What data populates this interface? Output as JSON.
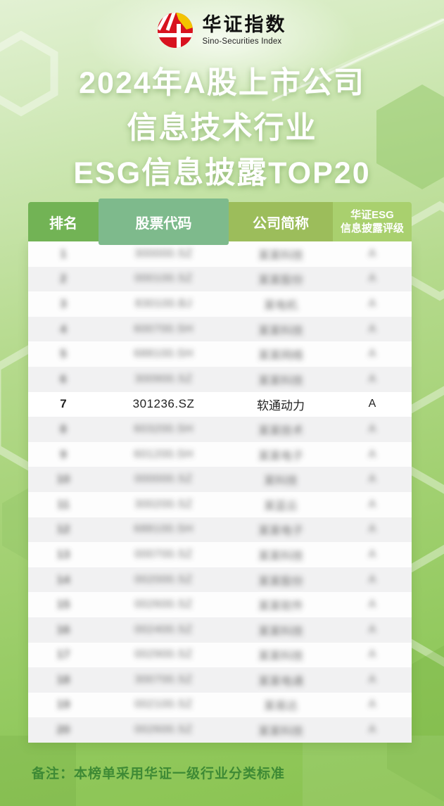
{
  "brand": {
    "name_cn": "华证指数",
    "name_en": "Sino-Securities Index"
  },
  "title": {
    "line1": "2024年A股上市公司",
    "line2": "信息技术行业",
    "line3": "ESG信息披露TOP20"
  },
  "table": {
    "col_rank": "排名",
    "col_code": "股票代码",
    "col_name": "公司简称",
    "col_rating_line1": "华证ESG",
    "col_rating_line2": "信息披露评级",
    "rows": [
      {
        "rank": "1",
        "code": "300000.SZ",
        "name": "某某科技",
        "rating": "A",
        "blurred": true
      },
      {
        "rank": "2",
        "code": "000100.SZ",
        "name": "某某股份",
        "rating": "A",
        "blurred": true
      },
      {
        "rank": "3",
        "code": "830100.BJ",
        "name": "某电机",
        "rating": "A",
        "blurred": true
      },
      {
        "rank": "4",
        "code": "600700.SH",
        "name": "某某科技",
        "rating": "A",
        "blurred": true
      },
      {
        "rank": "5",
        "code": "688100.SH",
        "name": "某某网络",
        "rating": "A",
        "blurred": true
      },
      {
        "rank": "6",
        "code": "300900.SZ",
        "name": "某某科技",
        "rating": "A",
        "blurred": true
      },
      {
        "rank": "7",
        "code": "301236.SZ",
        "name": "软通动力",
        "rating": "A",
        "blurred": false
      },
      {
        "rank": "8",
        "code": "603200.SH",
        "name": "某某技术",
        "rating": "A",
        "blurred": true
      },
      {
        "rank": "9",
        "code": "601200.SH",
        "name": "某某电子",
        "rating": "A",
        "blurred": true
      },
      {
        "rank": "10",
        "code": "000000.SZ",
        "name": "某科技",
        "rating": "A",
        "blurred": true
      },
      {
        "rank": "11",
        "code": "300200.SZ",
        "name": "某蓝云",
        "rating": "A",
        "blurred": true
      },
      {
        "rank": "12",
        "code": "688100.SH",
        "name": "某某电子",
        "rating": "A",
        "blurred": true
      },
      {
        "rank": "13",
        "code": "000700.SZ",
        "name": "某某科技",
        "rating": "A",
        "blurred": true
      },
      {
        "rank": "14",
        "code": "002000.SZ",
        "name": "某某股份",
        "rating": "A",
        "blurred": true
      },
      {
        "rank": "15",
        "code": "002600.SZ",
        "name": "某某软件",
        "rating": "A",
        "blurred": true
      },
      {
        "rank": "16",
        "code": "002400.SZ",
        "name": "某某科技",
        "rating": "A",
        "blurred": true
      },
      {
        "rank": "17",
        "code": "002900.SZ",
        "name": "某某科技",
        "rating": "A",
        "blurred": true
      },
      {
        "rank": "18",
        "code": "300700.SZ",
        "name": "某某电通",
        "rating": "A",
        "blurred": true
      },
      {
        "rank": "19",
        "code": "002100.SZ",
        "name": "某易达",
        "rating": "A",
        "blurred": true
      },
      {
        "rank": "20",
        "code": "002600.SZ",
        "name": "某某科技",
        "rating": "A",
        "blurred": true
      }
    ]
  },
  "note": "备注：本榜单采用华证一级行业分类标准",
  "colors": {
    "header_rank": "#72b355",
    "header_code": "#7eba8c",
    "header_name": "#9cbd5b",
    "header_rating": "#a9d06e",
    "logo_red": "#d8121f",
    "logo_yellow": "#f3c400",
    "note_green": "#3e8a35"
  }
}
